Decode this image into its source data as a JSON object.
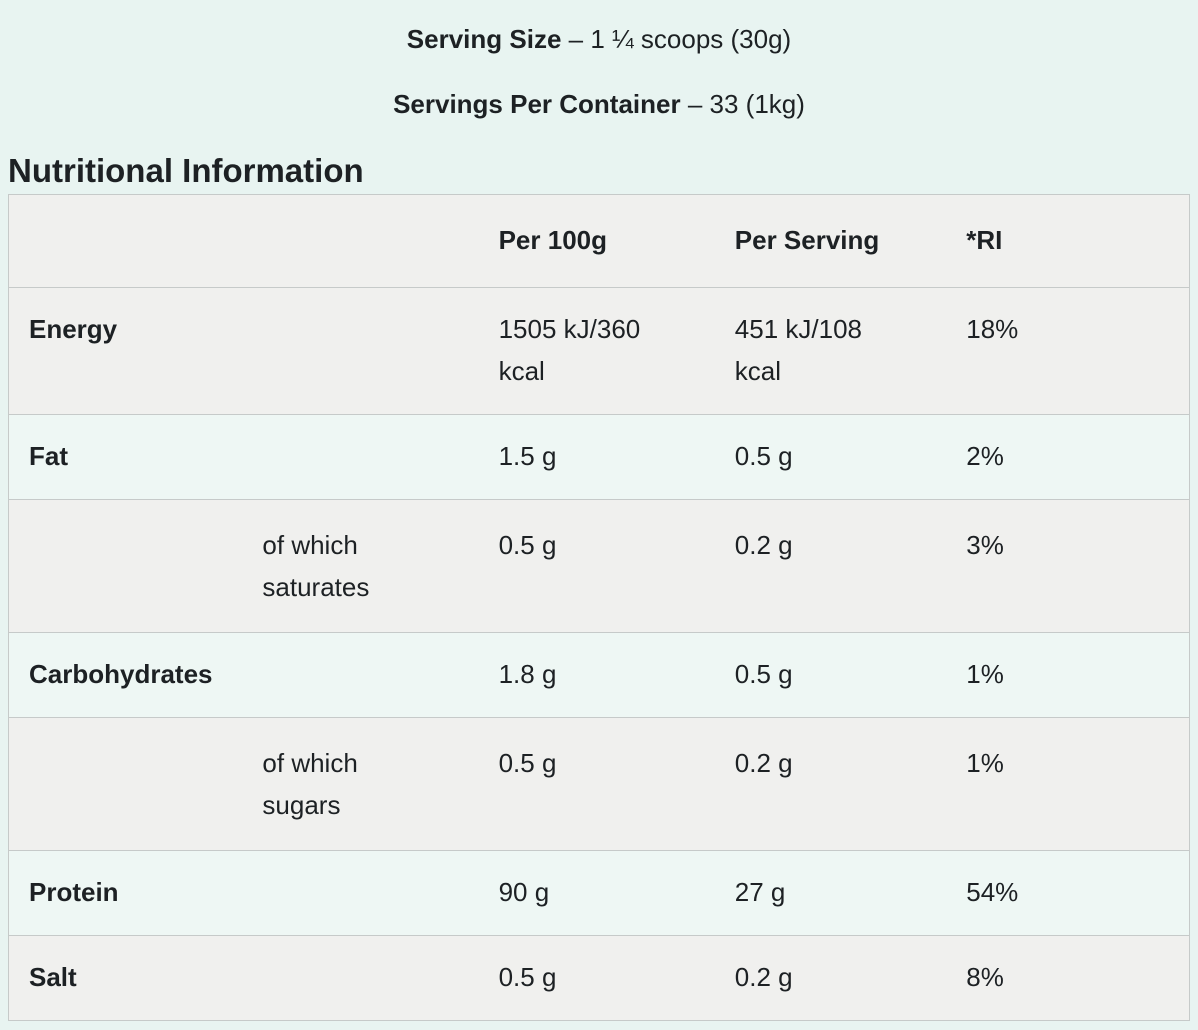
{
  "colors": {
    "page_background": "#e8f4f1",
    "row_grey": "#f0f0ee",
    "row_mint": "#eef7f4",
    "border": "#c6cac9",
    "text": "#1d2124"
  },
  "header": {
    "serving_size_label": "Serving Size",
    "serving_size_value": "– 1 ¼ scoops (30g)",
    "servings_label": "Servings Per Container",
    "servings_value": "– 33 (1kg)",
    "section_title": "Nutritional Information"
  },
  "table": {
    "col_headers": [
      "",
      "",
      "Per 100g",
      "Per Serving",
      "*RI"
    ],
    "rows": [
      {
        "name": "Energy",
        "sub": "",
        "per_100g": "1505 kJ/360\nkcal",
        "per_serving": "451 kJ/108\nkcal",
        "ri": "18%"
      },
      {
        "name": "Fat",
        "sub": "",
        "per_100g": "1.5 g",
        "per_serving": "0.5 g",
        "ri": "2%"
      },
      {
        "name": "",
        "sub": "of which\nsaturates",
        "per_100g": "0.5 g",
        "per_serving": "0.2 g",
        "ri": "3%"
      },
      {
        "name": "Carbohydrates",
        "sub": "",
        "per_100g": "1.8 g",
        "per_serving": "0.5 g",
        "ri": "1%"
      },
      {
        "name": "",
        "sub": "of which\nsugars",
        "per_100g": "0.5 g",
        "per_serving": "0.2 g",
        "ri": "1%"
      },
      {
        "name": "Protein",
        "sub": "",
        "per_100g": "90 g",
        "per_serving": "27 g",
        "ri": "54%"
      },
      {
        "name": "Salt",
        "sub": "",
        "per_100g": "0.5 g",
        "per_serving": "0.2 g",
        "ri": "8%"
      }
    ]
  }
}
